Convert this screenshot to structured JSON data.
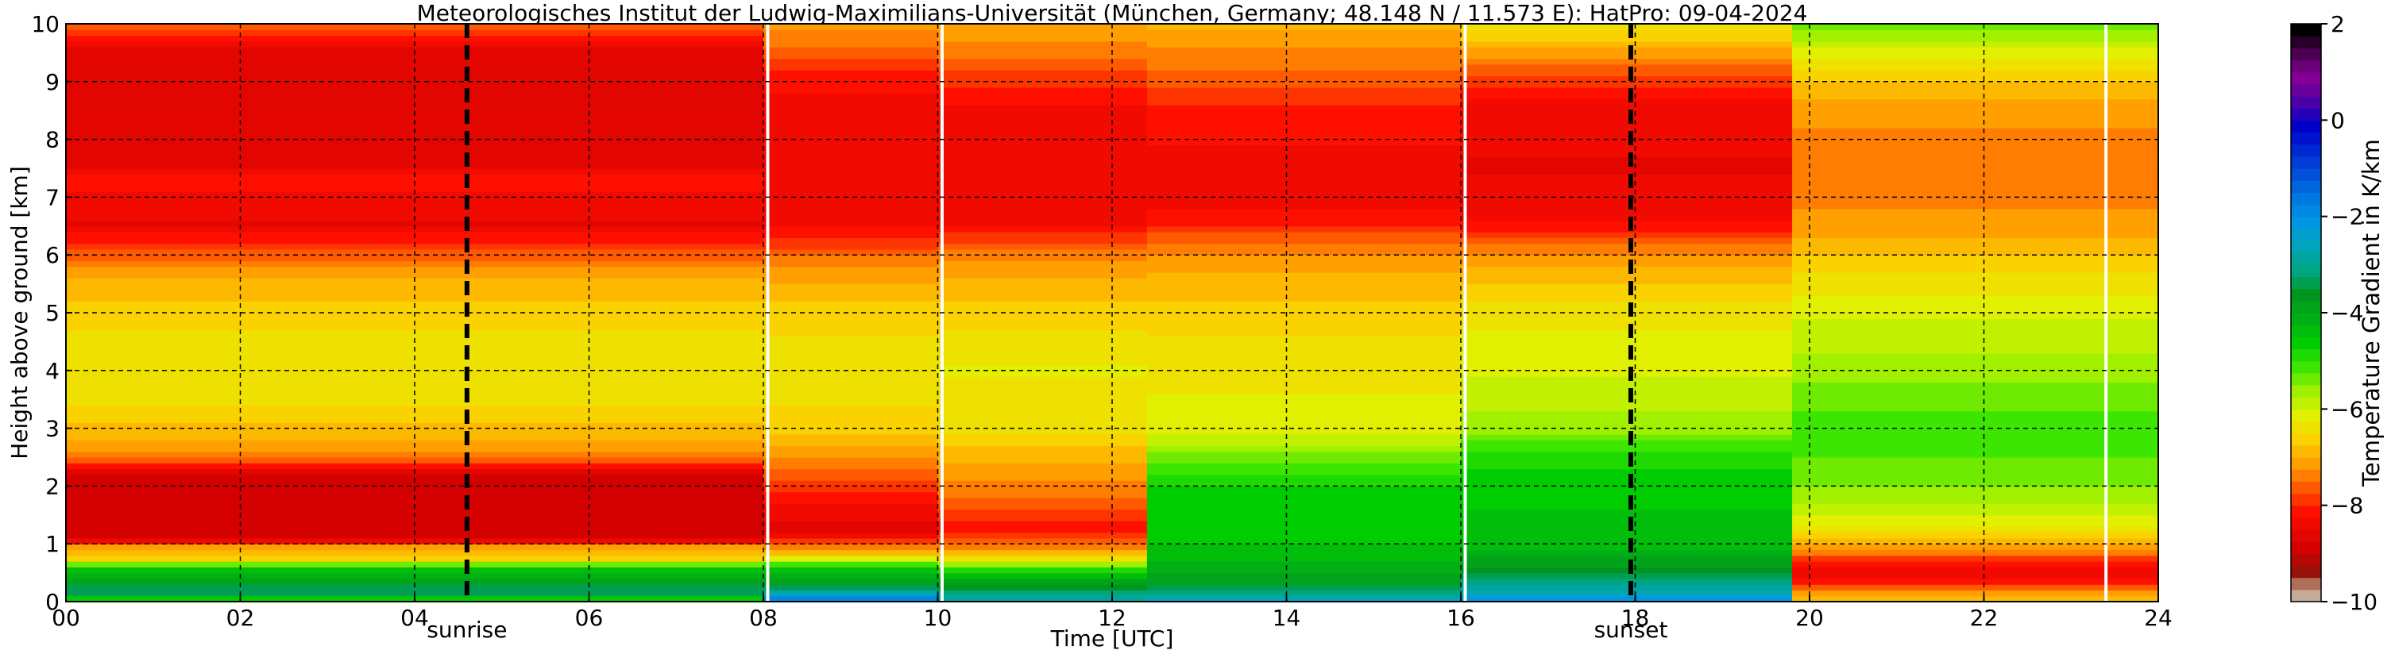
{
  "chart_data": {
    "type": "heatmap",
    "title": "Meteorologisches Institut der Ludwig-Maximilians-Universität (München, Germany; 48.148 N / 11.573 E):    HatPro: 09-04-2024",
    "xlabel": "Time [UTC]",
    "ylabel": "Height above ground [km]",
    "xlim": [
      0,
      24
    ],
    "ylim": [
      0,
      10
    ],
    "x_ticks": [
      0,
      2,
      4,
      6,
      8,
      10,
      12,
      14,
      16,
      18,
      20,
      22,
      24
    ],
    "x_tick_labels": [
      "00",
      "02",
      "04",
      "06",
      "08",
      "10",
      "12",
      "14",
      "16",
      "18",
      "20",
      "22",
      "24"
    ],
    "y_ticks": [
      0,
      1,
      2,
      3,
      4,
      5,
      6,
      7,
      8,
      9,
      10
    ],
    "y_tick_labels": [
      "0",
      "1",
      "2",
      "3",
      "4",
      "5",
      "6",
      "7",
      "8",
      "9",
      "10"
    ],
    "grid": true,
    "colorbar": {
      "label": "Temperature Gradient in K/km",
      "range": [
        -10,
        2
      ],
      "ticks": [
        -10,
        -8,
        -6,
        -4,
        -2,
        0,
        2
      ],
      "tick_labels": [
        "−10",
        "−8",
        "−6",
        "−4",
        "−2",
        "0",
        "2"
      ]
    },
    "sunrise": {
      "time": 4.6,
      "label": "sunrise"
    },
    "sunset": {
      "time": 17.95,
      "label": "sunset"
    },
    "data_gaps": [
      8.05,
      10.05,
      16.05,
      23.4
    ],
    "field": {
      "segments": [
        {
          "t0": 0.0,
          "t1": 8.0,
          "profile": [
            [
              0,
              -5.5
            ],
            [
              0.1,
              -3.5
            ],
            [
              0.2,
              -3.0
            ],
            [
              0.4,
              -4.0
            ],
            [
              0.6,
              -4.5
            ],
            [
              0.75,
              -6.5
            ],
            [
              0.95,
              -7.0
            ],
            [
              1.1,
              -8.8
            ],
            [
              2.2,
              -8.8
            ],
            [
              2.4,
              -7.8
            ],
            [
              2.6,
              -7.0
            ],
            [
              3.5,
              -6.3
            ],
            [
              4.5,
              -6.3
            ],
            [
              5.5,
              -6.8
            ],
            [
              5.9,
              -7.3
            ],
            [
              6.2,
              -7.8
            ],
            [
              6.5,
              -8.4
            ],
            [
              7.0,
              -8.2
            ],
            [
              7.3,
              -8.0
            ],
            [
              7.5,
              -8.4
            ],
            [
              9.6,
              -8.5
            ],
            [
              9.8,
              -7.8
            ],
            [
              10.0,
              -7.3
            ]
          ]
        },
        {
          "t0": 8.0,
          "t1": 10.0,
          "profile": [
            [
              0,
              -1.5
            ],
            [
              0.1,
              -2.2
            ],
            [
              0.3,
              -3.5
            ],
            [
              0.6,
              -4.5
            ],
            [
              0.8,
              -6.5
            ],
            [
              1.0,
              -7.5
            ],
            [
              1.2,
              -8.5
            ],
            [
              1.5,
              -8.3
            ],
            [
              2.0,
              -7.8
            ],
            [
              2.3,
              -7.3
            ],
            [
              3.0,
              -6.5
            ],
            [
              4.0,
              -6.2
            ],
            [
              5.0,
              -6.5
            ],
            [
              5.9,
              -7.2
            ],
            [
              6.3,
              -7.9
            ],
            [
              6.6,
              -8.3
            ],
            [
              7.5,
              -8.2
            ],
            [
              8.5,
              -8.3
            ],
            [
              9.3,
              -7.8
            ],
            [
              9.7,
              -7.3
            ],
            [
              10.0,
              -7.0
            ]
          ]
        },
        {
          "t0": 10.0,
          "t1": 12.4,
          "profile": [
            [
              0,
              -2.5
            ],
            [
              0.2,
              -3.2
            ],
            [
              0.5,
              -4.5
            ],
            [
              0.8,
              -6.5
            ],
            [
              1.0,
              -7.5
            ],
            [
              1.3,
              -8.0
            ],
            [
              1.8,
              -7.4
            ],
            [
              2.3,
              -7.0
            ],
            [
              3.0,
              -6.3
            ],
            [
              4.0,
              -6.1
            ],
            [
              5.0,
              -6.5
            ],
            [
              5.9,
              -7.1
            ],
            [
              6.3,
              -7.8
            ],
            [
              6.6,
              -8.2
            ],
            [
              7.5,
              -8.2
            ],
            [
              8.5,
              -8.2
            ],
            [
              9.0,
              -7.8
            ],
            [
              9.6,
              -7.2
            ],
            [
              10.0,
              -6.9
            ]
          ]
        },
        {
          "t0": 12.4,
          "t1": 16.0,
          "profile": [
            [
              0,
              -2.2
            ],
            [
              0.15,
              -3.0
            ],
            [
              0.4,
              -3.8
            ],
            [
              1.0,
              -4.4
            ],
            [
              2.0,
              -4.6
            ],
            [
              2.5,
              -5.3
            ],
            [
              3.0,
              -6.0
            ],
            [
              4.0,
              -6.2
            ],
            [
              5.0,
              -6.5
            ],
            [
              5.9,
              -7.0
            ],
            [
              6.3,
              -7.5
            ],
            [
              6.6,
              -8.1
            ],
            [
              7.5,
              -8.2
            ],
            [
              8.5,
              -8.0
            ],
            [
              9.0,
              -7.5
            ],
            [
              9.6,
              -7.1
            ],
            [
              10.0,
              -6.8
            ]
          ]
        },
        {
          "t0": 16.0,
          "t1": 19.8,
          "profile": [
            [
              0,
              -1.8
            ],
            [
              0.2,
              -2.6
            ],
            [
              0.5,
              -3.5
            ],
            [
              1.0,
              -4.2
            ],
            [
              2.0,
              -4.5
            ],
            [
              2.6,
              -4.8
            ],
            [
              3.0,
              -5.5
            ],
            [
              3.6,
              -5.8
            ],
            [
              4.5,
              -6.0
            ],
            [
              5.2,
              -6.4
            ],
            [
              5.9,
              -7.0
            ],
            [
              6.3,
              -7.6
            ],
            [
              6.6,
              -8.2
            ],
            [
              7.5,
              -8.4
            ],
            [
              8.5,
              -8.3
            ],
            [
              9.0,
              -7.8
            ],
            [
              9.6,
              -6.8
            ],
            [
              10.0,
              -6.2
            ]
          ]
        },
        {
          "t0": 19.8,
          "t1": 24.0,
          "profile": [
            [
              0,
              -6.5
            ],
            [
              0.2,
              -7.3
            ],
            [
              0.4,
              -8.4
            ],
            [
              0.6,
              -8.2
            ],
            [
              0.8,
              -7.5
            ],
            [
              1.0,
              -6.9
            ],
            [
              1.3,
              -6.2
            ],
            [
              1.7,
              -5.6
            ],
            [
              2.2,
              -5.2
            ],
            [
              3.0,
              -5.0
            ],
            [
              3.6,
              -5.3
            ],
            [
              4.2,
              -5.6
            ],
            [
              5.0,
              -5.9
            ],
            [
              6.0,
              -6.6
            ],
            [
              6.5,
              -7.1
            ],
            [
              7.5,
              -7.2
            ],
            [
              8.5,
              -7.1
            ],
            [
              9.0,
              -6.6
            ],
            [
              9.5,
              -6.0
            ],
            [
              10.0,
              -5.2
            ]
          ]
        }
      ]
    }
  }
}
